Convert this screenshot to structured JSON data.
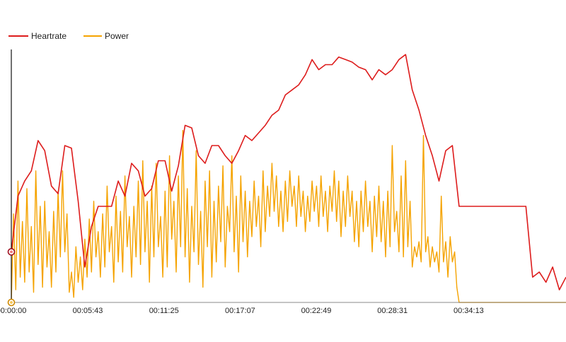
{
  "colors": {
    "heartrate": "#dd1c1c",
    "power": "#f5a300",
    "axis": "#111111"
  },
  "chart_data": {
    "type": "line",
    "title": "",
    "xlabel": "",
    "ylabel": "",
    "legend_placement": "top-left",
    "grid": false,
    "x_ticks": [
      "00:00:00",
      "00:05:43",
      "00:11:25",
      "00:17:07",
      "00:22:49",
      "00:28:31",
      "00:34:13"
    ],
    "xlim_seconds": [
      0,
      2490
    ],
    "ylim": [
      0,
      100
    ],
    "series": [
      {
        "name": "Heartrate",
        "color": "#dd1c1c",
        "points": [
          [
            0,
            20
          ],
          [
            30,
            42
          ],
          [
            60,
            48
          ],
          [
            90,
            52
          ],
          [
            120,
            64
          ],
          [
            150,
            60
          ],
          [
            180,
            46
          ],
          [
            210,
            43
          ],
          [
            240,
            62
          ],
          [
            270,
            61
          ],
          [
            300,
            40
          ],
          [
            330,
            14
          ],
          [
            360,
            30
          ],
          [
            390,
            38
          ],
          [
            420,
            38
          ],
          [
            450,
            38
          ],
          [
            480,
            48
          ],
          [
            510,
            42
          ],
          [
            540,
            55
          ],
          [
            570,
            52
          ],
          [
            600,
            42
          ],
          [
            630,
            45
          ],
          [
            660,
            56
          ],
          [
            690,
            56
          ],
          [
            720,
            44
          ],
          [
            750,
            54
          ],
          [
            780,
            70
          ],
          [
            810,
            69
          ],
          [
            840,
            58
          ],
          [
            870,
            55
          ],
          [
            900,
            62
          ],
          [
            930,
            62
          ],
          [
            960,
            58
          ],
          [
            990,
            55
          ],
          [
            1020,
            60
          ],
          [
            1050,
            66
          ],
          [
            1080,
            64
          ],
          [
            1110,
            67
          ],
          [
            1140,
            70
          ],
          [
            1170,
            74
          ],
          [
            1200,
            76
          ],
          [
            1230,
            82
          ],
          [
            1260,
            84
          ],
          [
            1290,
            86
          ],
          [
            1320,
            90
          ],
          [
            1350,
            96
          ],
          [
            1380,
            92
          ],
          [
            1410,
            94
          ],
          [
            1440,
            94
          ],
          [
            1470,
            97
          ],
          [
            1500,
            96
          ],
          [
            1530,
            95
          ],
          [
            1560,
            93
          ],
          [
            1590,
            92
          ],
          [
            1620,
            88
          ],
          [
            1650,
            92
          ],
          [
            1680,
            90
          ],
          [
            1710,
            92
          ],
          [
            1740,
            96
          ],
          [
            1770,
            98
          ],
          [
            1800,
            84
          ],
          [
            1830,
            76
          ],
          [
            1860,
            66
          ],
          [
            1890,
            58
          ],
          [
            1920,
            48
          ],
          [
            1950,
            60
          ],
          [
            1980,
            62
          ],
          [
            2010,
            38
          ],
          [
            2040,
            38
          ],
          [
            2070,
            38
          ],
          [
            2100,
            38
          ],
          [
            2130,
            38
          ],
          [
            2160,
            38
          ],
          [
            2190,
            38
          ],
          [
            2220,
            38
          ],
          [
            2250,
            38
          ],
          [
            2280,
            38
          ],
          [
            2310,
            38
          ],
          [
            2340,
            10
          ],
          [
            2370,
            12
          ],
          [
            2400,
            8
          ],
          [
            2430,
            14
          ],
          [
            2460,
            5
          ],
          [
            2490,
            10
          ]
        ]
      },
      {
        "name": "Power",
        "color": "#f5a300",
        "points": [
          [
            0,
            0
          ],
          [
            10,
            35
          ],
          [
            20,
            5
          ],
          [
            30,
            48
          ],
          [
            40,
            10
          ],
          [
            50,
            32
          ],
          [
            60,
            8
          ],
          [
            70,
            45
          ],
          [
            80,
            12
          ],
          [
            90,
            30
          ],
          [
            100,
            4
          ],
          [
            110,
            52
          ],
          [
            120,
            15
          ],
          [
            130,
            38
          ],
          [
            140,
            6
          ],
          [
            150,
            40
          ],
          [
            160,
            14
          ],
          [
            170,
            28
          ],
          [
            180,
            6
          ],
          [
            190,
            36
          ],
          [
            200,
            12
          ],
          [
            210,
            44
          ],
          [
            220,
            18
          ],
          [
            230,
            52
          ],
          [
            240,
            20
          ],
          [
            250,
            35
          ],
          [
            260,
            4
          ],
          [
            270,
            12
          ],
          [
            280,
            2
          ],
          [
            290,
            22
          ],
          [
            300,
            8
          ],
          [
            310,
            18
          ],
          [
            320,
            5
          ],
          [
            330,
            25
          ],
          [
            340,
            10
          ],
          [
            350,
            33
          ],
          [
            360,
            12
          ],
          [
            370,
            40
          ],
          [
            380,
            18
          ],
          [
            390,
            28
          ],
          [
            400,
            10
          ],
          [
            410,
            35
          ],
          [
            420,
            14
          ],
          [
            430,
            46
          ],
          [
            440,
            20
          ],
          [
            450,
            30
          ],
          [
            460,
            8
          ],
          [
            470,
            42
          ],
          [
            480,
            16
          ],
          [
            490,
            36
          ],
          [
            500,
            12
          ],
          [
            510,
            50
          ],
          [
            520,
            22
          ],
          [
            530,
            34
          ],
          [
            540,
            10
          ],
          [
            550,
            38
          ],
          [
            560,
            18
          ],
          [
            570,
            48
          ],
          [
            580,
            15
          ],
          [
            590,
            56
          ],
          [
            600,
            20
          ],
          [
            610,
            40
          ],
          [
            620,
            8
          ],
          [
            630,
            46
          ],
          [
            640,
            18
          ],
          [
            650,
            55
          ],
          [
            660,
            22
          ],
          [
            670,
            34
          ],
          [
            680,
            10
          ],
          [
            690,
            44
          ],
          [
            700,
            14
          ],
          [
            710,
            58
          ],
          [
            720,
            25
          ],
          [
            730,
            40
          ],
          [
            740,
            12
          ],
          [
            750,
            50
          ],
          [
            760,
            22
          ],
          [
            770,
            68
          ],
          [
            780,
            18
          ],
          [
            790,
            45
          ],
          [
            800,
            8
          ],
          [
            810,
            38
          ],
          [
            820,
            20
          ],
          [
            830,
            60
          ],
          [
            840,
            15
          ],
          [
            850,
            36
          ],
          [
            860,
            6
          ],
          [
            870,
            48
          ],
          [
            880,
            22
          ],
          [
            890,
            52
          ],
          [
            900,
            10
          ],
          [
            910,
            40
          ],
          [
            920,
            16
          ],
          [
            930,
            46
          ],
          [
            940,
            24
          ],
          [
            950,
            54
          ],
          [
            960,
            14
          ],
          [
            970,
            38
          ],
          [
            980,
            28
          ],
          [
            990,
            58
          ],
          [
            1000,
            20
          ],
          [
            1010,
            42
          ],
          [
            1020,
            12
          ],
          [
            1030,
            50
          ],
          [
            1040,
            24
          ],
          [
            1050,
            44
          ],
          [
            1060,
            18
          ],
          [
            1070,
            40
          ],
          [
            1080,
            26
          ],
          [
            1090,
            48
          ],
          [
            1100,
            30
          ],
          [
            1110,
            42
          ],
          [
            1120,
            22
          ],
          [
            1130,
            52
          ],
          [
            1140,
            28
          ],
          [
            1150,
            46
          ],
          [
            1160,
            34
          ],
          [
            1170,
            55
          ],
          [
            1180,
            36
          ],
          [
            1190,
            50
          ],
          [
            1200,
            30
          ],
          [
            1210,
            44
          ],
          [
            1220,
            28
          ],
          [
            1230,
            48
          ],
          [
            1240,
            32
          ],
          [
            1250,
            52
          ],
          [
            1260,
            38
          ],
          [
            1270,
            46
          ],
          [
            1280,
            30
          ],
          [
            1290,
            50
          ],
          [
            1300,
            34
          ],
          [
            1310,
            44
          ],
          [
            1320,
            28
          ],
          [
            1330,
            42
          ],
          [
            1340,
            32
          ],
          [
            1350,
            48
          ],
          [
            1360,
            36
          ],
          [
            1370,
            46
          ],
          [
            1380,
            30
          ],
          [
            1390,
            50
          ],
          [
            1400,
            34
          ],
          [
            1410,
            44
          ],
          [
            1420,
            28
          ],
          [
            1430,
            46
          ],
          [
            1440,
            36
          ],
          [
            1450,
            52
          ],
          [
            1460,
            32
          ],
          [
            1470,
            48
          ],
          [
            1480,
            26
          ],
          [
            1490,
            44
          ],
          [
            1500,
            30
          ],
          [
            1510,
            50
          ],
          [
            1520,
            34
          ],
          [
            1530,
            44
          ],
          [
            1540,
            24
          ],
          [
            1550,
            40
          ],
          [
            1560,
            22
          ],
          [
            1570,
            44
          ],
          [
            1580,
            28
          ],
          [
            1590,
            48
          ],
          [
            1600,
            30
          ],
          [
            1610,
            40
          ],
          [
            1620,
            20
          ],
          [
            1630,
            42
          ],
          [
            1640,
            26
          ],
          [
            1650,
            46
          ],
          [
            1660,
            24
          ],
          [
            1670,
            40
          ],
          [
            1680,
            18
          ],
          [
            1690,
            44
          ],
          [
            1700,
            22
          ],
          [
            1710,
            62
          ],
          [
            1720,
            28
          ],
          [
            1730,
            36
          ],
          [
            1740,
            20
          ],
          [
            1750,
            50
          ],
          [
            1760,
            18
          ],
          [
            1770,
            56
          ],
          [
            1780,
            22
          ],
          [
            1790,
            40
          ],
          [
            1800,
            14
          ],
          [
            1810,
            22
          ],
          [
            1820,
            18
          ],
          [
            1830,
            24
          ],
          [
            1840,
            16
          ],
          [
            1850,
            66
          ],
          [
            1860,
            20
          ],
          [
            1870,
            26
          ],
          [
            1880,
            14
          ],
          [
            1890,
            22
          ],
          [
            1900,
            16
          ],
          [
            1910,
            20
          ],
          [
            1920,
            12
          ],
          [
            1930,
            42
          ],
          [
            1940,
            16
          ],
          [
            1950,
            24
          ],
          [
            1960,
            10
          ],
          [
            1970,
            26
          ],
          [
            1980,
            16
          ],
          [
            1990,
            20
          ],
          [
            2000,
            6
          ],
          [
            2010,
            0
          ],
          [
            2050,
            0
          ],
          [
            2100,
            0
          ],
          [
            2150,
            0
          ],
          [
            2200,
            0
          ],
          [
            2250,
            0
          ],
          [
            2300,
            0
          ],
          [
            2350,
            0
          ],
          [
            2400,
            0
          ],
          [
            2450,
            0
          ],
          [
            2490,
            0
          ]
        ]
      }
    ]
  }
}
